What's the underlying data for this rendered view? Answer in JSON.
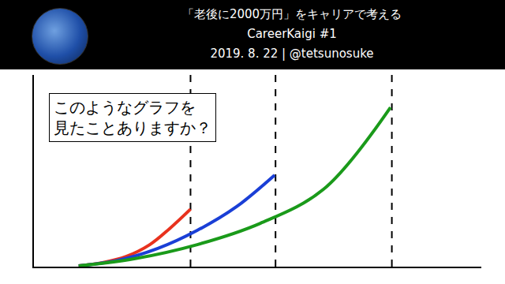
{
  "header": {
    "title_lines": [
      "「老後に2000万円」をキャリアで考える",
      "CareerKaigi #1",
      "2019. 8. 22 | @tetsunosuke"
    ]
  },
  "chart_data": {
    "type": "line",
    "xlim": [
      0,
      100
    ],
    "ylim": [
      0,
      100
    ],
    "tick_labels": false,
    "grid": false,
    "vlines": [
      35,
      54,
      80
    ],
    "annotation_lines": [
      "このようなグラフを",
      "見たことありますか？"
    ],
    "series": [
      {
        "color": "#e8321e",
        "x": [
          10,
          15.3,
          20.6,
          25.9,
          30.3,
          35
        ],
        "values": [
          0.4,
          2.1,
          5.3,
          11.5,
          19.8,
          30
        ]
      },
      {
        "color": "#1a3fd6",
        "x": [
          10,
          18.8,
          27.7,
          36.5,
          45.3,
          53.8
        ],
        "values": [
          0.4,
          3.3,
          9.5,
          18.9,
          31.3,
          47.7
        ]
      },
      {
        "color": "#1a9a1a",
        "x": [
          10,
          22.4,
          36.5,
          50.6,
          64.7,
          79.7
        ],
        "values": [
          0.4,
          4.1,
          11.5,
          22.6,
          40.3,
          83.1
        ]
      }
    ]
  }
}
